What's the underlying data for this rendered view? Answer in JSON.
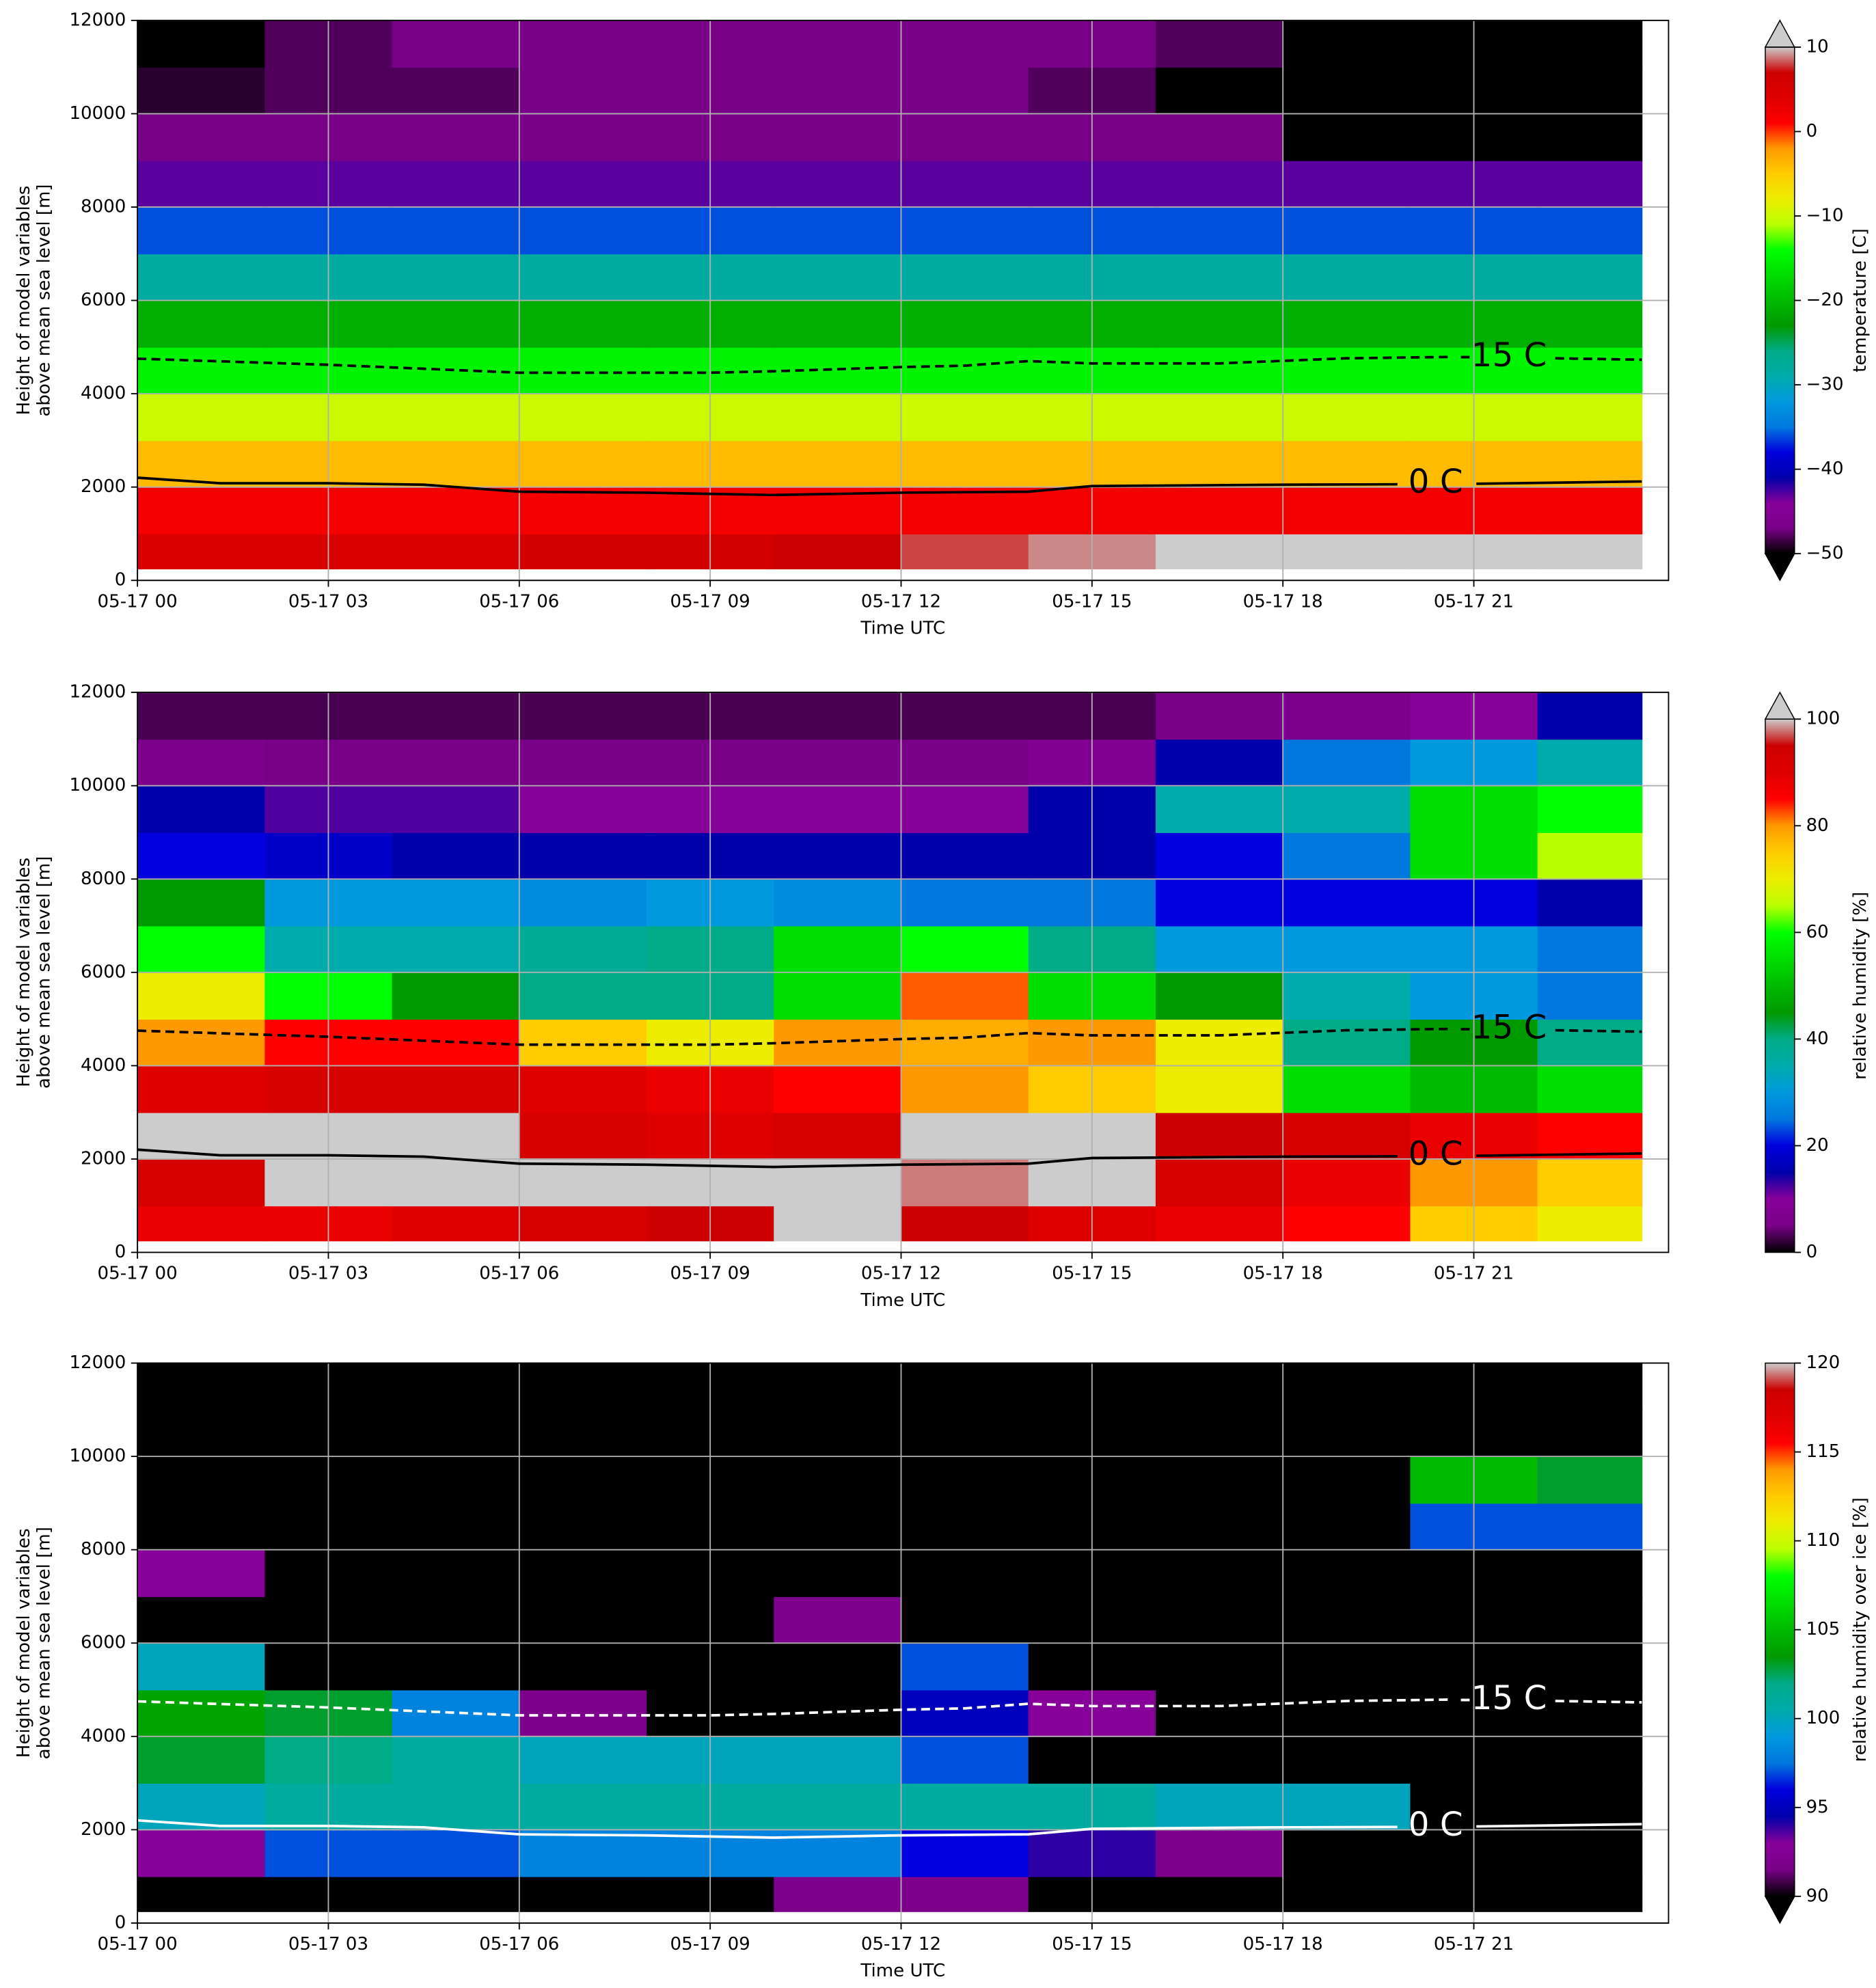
{
  "chart_data": [
    {
      "type": "heatmap",
      "xlabel": "Time UTC",
      "ylabel": [
        "Height of model variables",
        "above mean sea level [m]"
      ],
      "colorbar_label": "temperature [C]",
      "clim": [
        -50,
        10
      ],
      "extend": "both",
      "cticks": [
        {
          "value": -50,
          "label": "−50"
        },
        {
          "value": -40,
          "label": "−40"
        },
        {
          "value": -30,
          "label": "−30"
        },
        {
          "value": -20,
          "label": "−20"
        },
        {
          "value": -10,
          "label": "−10"
        },
        0,
        10
      ],
      "xlim": [
        0,
        24.06
      ],
      "ylim": [
        0,
        12000
      ],
      "grid": true,
      "xticks": [
        {
          "value": 0,
          "label": "05-17 00"
        },
        {
          "value": 3,
          "label": "05-17 03"
        },
        {
          "value": 6,
          "label": "05-17 06"
        },
        {
          "value": 9,
          "label": "05-17 09"
        },
        {
          "value": 12,
          "label": "05-17 12"
        },
        {
          "value": 15,
          "label": "05-17 15"
        },
        {
          "value": 18,
          "label": "05-17 18"
        },
        {
          "value": 21,
          "label": "05-17 21"
        }
      ],
      "yticks": [
        0,
        2000,
        4000,
        6000,
        8000,
        10000,
        12000
      ],
      "x_edges": [
        0,
        2,
        4,
        6,
        8,
        10,
        12,
        14,
        16,
        18,
        20,
        22,
        23.64
      ],
      "y_edges": [
        250,
        1000,
        2000,
        3000,
        4000,
        5000,
        6000,
        7000,
        8000,
        9000,
        10000,
        11000,
        12000
      ],
      "z": [
        [
          5,
          5,
          5,
          6,
          6,
          7,
          8,
          9,
          11,
          11,
          12,
          12
        ],
        [
          2,
          2,
          2,
          2,
          2,
          2,
          2,
          2,
          2,
          2,
          2,
          2
        ],
        [
          -4,
          -4,
          -4,
          -4,
          -4,
          -4,
          -4,
          -4,
          -4,
          -4,
          -4,
          -4
        ],
        [
          -10,
          -10,
          -10,
          -10,
          -10,
          -10,
          -10,
          -10,
          -10,
          -10,
          -10,
          -10
        ],
        [
          -15,
          -15,
          -15,
          -15,
          -15,
          -15,
          -15,
          -15,
          -15,
          -15,
          -15,
          -15
        ],
        [
          -21,
          -21,
          -21,
          -21,
          -21,
          -21,
          -21,
          -21,
          -21,
          -21,
          -21,
          -21
        ],
        [
          -28,
          -28,
          -28,
          -28,
          -28,
          -28,
          -28,
          -28,
          -28,
          -28,
          -28,
          -28
        ],
        [
          -36,
          -36,
          -36,
          -36,
          -36,
          -36,
          -36,
          -36,
          -36,
          -36,
          -36,
          -36
        ],
        [
          -43,
          -43,
          -43,
          -43,
          -43,
          -43,
          -43,
          -43,
          -43,
          -43,
          -43,
          -43
        ],
        [
          -47,
          -47,
          -47,
          -47,
          -47,
          -47,
          -47,
          -47,
          -47,
          -51,
          -51,
          -51
        ],
        [
          -49,
          -48,
          -48,
          -47,
          -47,
          -47,
          -47,
          -48,
          -50,
          -52,
          -52,
          -52
        ],
        [
          -50,
          -48,
          -47,
          -47,
          -47,
          -47,
          -47,
          -47,
          -48,
          -51,
          -52,
          -52
        ]
      ],
      "contour_color": "#000000",
      "contours": [
        {
          "label": "0 C",
          "style": "solid",
          "x": [
            0,
            1.3,
            3,
            4.5,
            6,
            8,
            10,
            12,
            14,
            15,
            18,
            19.8,
            20.4,
            21.04,
            23.64
          ],
          "y": [
            2200,
            2080,
            2080,
            2050,
            1900,
            1880,
            1830,
            1880,
            1900,
            2020,
            2050,
            2060,
            null,
            2070,
            2120
          ]
        },
        {
          "label": "-15 C",
          "style": "dashed",
          "x": [
            0,
            3,
            6,
            9,
            10,
            12,
            13,
            14,
            15,
            17,
            19,
            20.64,
            21.46,
            22.28,
            23.64
          ],
          "y": [
            4750,
            4620,
            4450,
            4450,
            4480,
            4570,
            4600,
            4700,
            4650,
            4650,
            4760,
            4790,
            null,
            4760,
            4730
          ]
        }
      ]
    },
    {
      "type": "heatmap",
      "xlabel": "Time UTC",
      "ylabel": [
        "Height of model variables",
        "above mean sea level [m]"
      ],
      "colorbar_label": "relative humidity [%]",
      "clim": [
        0,
        100
      ],
      "extend": "max",
      "cticks": [
        0,
        20,
        40,
        60,
        80,
        100
      ],
      "xlim": [
        0,
        24.06
      ],
      "ylim": [
        0,
        12000
      ],
      "grid": true,
      "xticks": [
        {
          "value": 0,
          "label": "05-17 00"
        },
        {
          "value": 3,
          "label": "05-17 03"
        },
        {
          "value": 6,
          "label": "05-17 06"
        },
        {
          "value": 9,
          "label": "05-17 09"
        },
        {
          "value": 12,
          "label": "05-17 12"
        },
        {
          "value": 15,
          "label": "05-17 15"
        },
        {
          "value": 18,
          "label": "05-17 18"
        },
        {
          "value": 21,
          "label": "05-17 21"
        }
      ],
      "yticks": [
        0,
        2000,
        4000,
        6000,
        8000,
        10000,
        12000
      ],
      "x_edges": [
        0,
        2,
        4,
        6,
        8,
        10,
        12,
        14,
        16,
        18,
        20,
        22,
        23.64
      ],
      "y_edges": [
        250,
        1000,
        2000,
        3000,
        4000,
        5000,
        6000,
        7000,
        8000,
        9000,
        10000,
        11000,
        12000
      ],
      "z": [
        [
          88,
          88,
          90,
          92,
          95,
          100,
          95,
          90,
          88,
          85,
          75,
          70
        ],
        [
          92,
          100,
          100,
          100,
          100,
          100,
          98,
          100,
          92,
          88,
          80,
          75
        ],
        [
          100,
          100,
          100,
          92,
          90,
          92,
          100,
          100,
          95,
          92,
          88,
          85
        ],
        [
          90,
          92,
          92,
          90,
          88,
          85,
          80,
          75,
          70,
          55,
          50,
          55
        ],
        [
          80,
          85,
          85,
          75,
          70,
          80,
          78,
          80,
          70,
          40,
          45,
          40
        ],
        [
          70,
          60,
          45,
          40,
          40,
          55,
          82,
          55,
          45,
          35,
          30,
          25
        ],
        [
          60,
          35,
          35,
          38,
          40,
          55,
          60,
          40,
          30,
          30,
          30,
          25
        ],
        [
          45,
          30,
          30,
          28,
          30,
          28,
          25,
          25,
          20,
          20,
          20,
          15
        ],
        [
          20,
          18,
          15,
          15,
          15,
          15,
          15,
          15,
          20,
          25,
          55,
          65
        ],
        [
          15,
          12,
          12,
          10,
          10,
          10,
          10,
          15,
          35,
          35,
          55,
          60
        ],
        [
          6,
          5,
          5,
          5,
          5,
          5,
          5,
          8,
          15,
          25,
          30,
          35
        ],
        [
          3,
          3,
          3,
          3,
          3,
          3,
          3,
          3,
          5,
          6,
          10,
          15
        ]
      ],
      "contour_color": "#000000",
      "contours": [
        {
          "label": "0 C",
          "style": "solid",
          "x": [
            0,
            1.3,
            3,
            4.5,
            6,
            8,
            10,
            12,
            14,
            15,
            18,
            19.8,
            20.4,
            21.04,
            23.64
          ],
          "y": [
            2200,
            2080,
            2080,
            2050,
            1900,
            1880,
            1830,
            1880,
            1900,
            2020,
            2050,
            2060,
            null,
            2070,
            2120
          ]
        },
        {
          "label": "-15 C",
          "style": "dashed",
          "x": [
            0,
            3,
            6,
            9,
            10,
            12,
            13,
            14,
            15,
            17,
            19,
            20.64,
            21.46,
            22.28,
            23.64
          ],
          "y": [
            4750,
            4620,
            4450,
            4450,
            4480,
            4570,
            4600,
            4700,
            4650,
            4650,
            4760,
            4790,
            null,
            4760,
            4730
          ]
        }
      ]
    },
    {
      "type": "heatmap",
      "xlabel": "Time UTC",
      "ylabel": [
        "Height of model variables",
        "above mean sea level [m]"
      ],
      "colorbar_label": "relative humidity over ice [%]",
      "clim": [
        90,
        120
      ],
      "extend": "min",
      "cticks": [
        90,
        95,
        100,
        105,
        110,
        115,
        120
      ],
      "xlim": [
        0,
        24.06
      ],
      "ylim": [
        0,
        12000
      ],
      "grid": true,
      "xticks": [
        {
          "value": 0,
          "label": "05-17 00"
        },
        {
          "value": 3,
          "label": "05-17 03"
        },
        {
          "value": 6,
          "label": "05-17 06"
        },
        {
          "value": 9,
          "label": "05-17 09"
        },
        {
          "value": 12,
          "label": "05-17 12"
        },
        {
          "value": 15,
          "label": "05-17 15"
        },
        {
          "value": 18,
          "label": "05-17 18"
        },
        {
          "value": 21,
          "label": "05-17 21"
        }
      ],
      "yticks": [
        0,
        2000,
        4000,
        6000,
        8000,
        10000,
        12000
      ],
      "x_edges": [
        0,
        2,
        4,
        6,
        8,
        10,
        12,
        14,
        16,
        18,
        20,
        22,
        23.64
      ],
      "y_edges": [
        250,
        1000,
        2000,
        3000,
        4000,
        5000,
        6000,
        7000,
        8000,
        9000,
        10000,
        11000,
        12000
      ],
      "z": [
        [
          85,
          85,
          85,
          85,
          88,
          92,
          92,
          85,
          85,
          85,
          85,
          85
        ],
        [
          93,
          97,
          97,
          98,
          98,
          98,
          96,
          94,
          92,
          85,
          85,
          85
        ],
        [
          100,
          101,
          101,
          101,
          101,
          101,
          101,
          101,
          100,
          100,
          85,
          85
        ],
        [
          103,
          102,
          101,
          100,
          100,
          100,
          97,
          85,
          85,
          85,
          85,
          85
        ],
        [
          104,
          103,
          98,
          92,
          85,
          85,
          95,
          93,
          85,
          85,
          85,
          85
        ],
        [
          100,
          88,
          85,
          85,
          85,
          85,
          97,
          85,
          85,
          85,
          85,
          85
        ],
        [
          85,
          85,
          85,
          85,
          85,
          92,
          85,
          85,
          85,
          85,
          85,
          85
        ],
        [
          93,
          85,
          85,
          85,
          85,
          85,
          85,
          85,
          85,
          85,
          85,
          85
        ],
        [
          85,
          85,
          85,
          85,
          85,
          85,
          85,
          85,
          85,
          85,
          97,
          97
        ],
        [
          85,
          85,
          85,
          85,
          85,
          85,
          85,
          85,
          85,
          85,
          105,
          103
        ],
        [
          85,
          85,
          85,
          85,
          85,
          85,
          85,
          85,
          85,
          85,
          85,
          85
        ],
        [
          85,
          85,
          85,
          85,
          85,
          85,
          85,
          85,
          85,
          85,
          85,
          85
        ]
      ],
      "contour_color": "#ffffff",
      "contours": [
        {
          "label": "0 C",
          "style": "solid",
          "x": [
            0,
            1.3,
            3,
            4.5,
            6,
            8,
            10,
            12,
            14,
            15,
            18,
            19.8,
            20.4,
            21.04,
            23.64
          ],
          "y": [
            2200,
            2080,
            2080,
            2050,
            1900,
            1880,
            1830,
            1880,
            1900,
            2020,
            2050,
            2060,
            null,
            2070,
            2120
          ]
        },
        {
          "label": "-15 C",
          "style": "dashed",
          "x": [
            0,
            3,
            6,
            9,
            10,
            12,
            13,
            14,
            15,
            17,
            19,
            20.64,
            21.46,
            22.28,
            23.64
          ],
          "y": [
            4750,
            4620,
            4450,
            4450,
            4480,
            4570,
            4600,
            4700,
            4650,
            4650,
            4760,
            4790,
            null,
            4760,
            4730
          ]
        }
      ]
    }
  ]
}
